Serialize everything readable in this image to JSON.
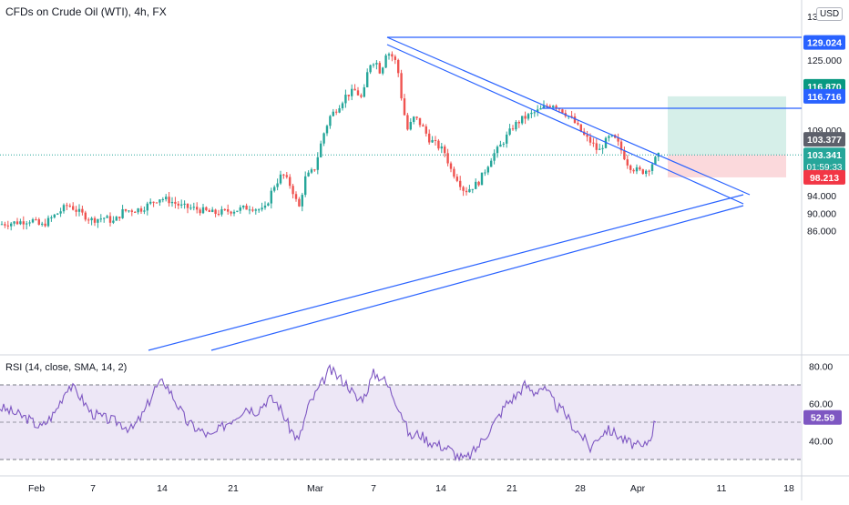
{
  "header": {
    "symbol_title": "CFDs on Crude Oil (WTI), 4h, FX",
    "currency": "USD"
  },
  "colors": {
    "up": "#26a69a",
    "down": "#ef5350",
    "trendline": "#2962ff",
    "rsi_line": "#7e57c2",
    "rsi_band": "#ede7f6",
    "profit_zone": "#d6efe9",
    "loss_zone": "#fbd9dc",
    "current_price": "#26a69a",
    "stop_price": "#f23645",
    "target_price": "#2962ff",
    "ref_price": "#5d606b",
    "target_green": "#089981"
  },
  "chart_data": [
    {
      "type": "candlestick",
      "title": "CFDs on Crude Oil (WTI), 4h, FX",
      "ylim": [
        82,
        135
      ],
      "y_ticks": [
        "135.000",
        "125.000",
        "109.000",
        "94.000",
        "90.000",
        "86.000"
      ],
      "x_ticks": [
        "Feb",
        "7",
        "14",
        "21",
        "Mar",
        "7",
        "14",
        "21",
        "28",
        "Apr",
        "11",
        "18"
      ],
      "anchors": [
        [
          0,
          87.5
        ],
        [
          20,
          88.0
        ],
        [
          35,
          88.5
        ],
        [
          45,
          87.0
        ],
        [
          60,
          89.5
        ],
        [
          75,
          92.0
        ],
        [
          85,
          90.5
        ],
        [
          100,
          88.5
        ],
        [
          115,
          89.0
        ],
        [
          125,
          88.0
        ],
        [
          135,
          90.5
        ],
        [
          155,
          91.0
        ],
        [
          175,
          93.5
        ],
        [
          185,
          93.0
        ],
        [
          200,
          91.5
        ],
        [
          215,
          91.0
        ],
        [
          235,
          90.0
        ],
        [
          250,
          90.5
        ],
        [
          265,
          91.0
        ],
        [
          275,
          91.5
        ],
        [
          290,
          90.5
        ],
        [
          300,
          96.0
        ],
        [
          310,
          99.0
        ],
        [
          320,
          96.0
        ],
        [
          328,
          91.0
        ],
        [
          335,
          98.0
        ],
        [
          345,
          100.0
        ],
        [
          355,
          108.0
        ],
        [
          362,
          112.0
        ],
        [
          370,
          114.0
        ],
        [
          380,
          117.0
        ],
        [
          390,
          118.0
        ],
        [
          398,
          116.0
        ],
        [
          405,
          124.0
        ],
        [
          412,
          125.0
        ],
        [
          418,
          122.0
        ],
        [
          424,
          127.0
        ],
        [
          430,
          126.0
        ],
        [
          436,
          124.0
        ],
        [
          441,
          116.0
        ],
        [
          447,
          109.0
        ],
        [
          455,
          112.0
        ],
        [
          463,
          110.0
        ],
        [
          471,
          107.0
        ],
        [
          480,
          105.5
        ],
        [
          488,
          104.0
        ],
        [
          495,
          100.0
        ],
        [
          502,
          98.0
        ],
        [
          510,
          95.0
        ],
        [
          518,
          96.0
        ],
        [
          525,
          97.0
        ],
        [
          533,
          100.0
        ],
        [
          540,
          103.0
        ],
        [
          548,
          105.0
        ],
        [
          556,
          107.5
        ],
        [
          564,
          110.0
        ],
        [
          573,
          111.5
        ],
        [
          582,
          112.5
        ],
        [
          592,
          113.5
        ],
        [
          600,
          114.5
        ],
        [
          607,
          115.0
        ],
        [
          614,
          114.0
        ],
        [
          620,
          113.0
        ],
        [
          628,
          111.5
        ],
        [
          635,
          109.5
        ],
        [
          642,
          107.5
        ],
        [
          650,
          106.0
        ],
        [
          657,
          104.0
        ],
        [
          663,
          106.0
        ],
        [
          670,
          107.5
        ],
        [
          677,
          106.5
        ],
        [
          683,
          104.0
        ],
        [
          690,
          101.0
        ],
        [
          697,
          100.0
        ],
        [
          704,
          99.5
        ],
        [
          711,
          100.0
        ],
        [
          718,
          102.0
        ],
        [
          724,
          103.3
        ]
      ],
      "annotations": {
        "current_price": "103.341",
        "countdown": "01:59:33",
        "stop_price": "98.213",
        "target_price_line": "116.716",
        "target_price_tag": "116.870",
        "top_line_price": "129.024",
        "ref_price": "103.377"
      },
      "position_tool": {
        "entry": 103.34,
        "target": 116.716,
        "stop": 98.213
      }
    },
    {
      "type": "line",
      "title": "RSI (14, close, SMA, 14, 2)",
      "ylim": [
        25,
        85
      ],
      "y_ticks": [
        "80.00",
        "60.00",
        "40.00"
      ],
      "band": [
        30,
        70
      ],
      "mid": 50,
      "last_value": "52.59",
      "anchors": [
        [
          0,
          58
        ],
        [
          15,
          55
        ],
        [
          30,
          52
        ],
        [
          45,
          47
        ],
        [
          60,
          55
        ],
        [
          75,
          70
        ],
        [
          85,
          66
        ],
        [
          100,
          55
        ],
        [
          115,
          52
        ],
        [
          130,
          50
        ],
        [
          145,
          46
        ],
        [
          158,
          55
        ],
        [
          170,
          68
        ],
        [
          180,
          72
        ],
        [
          192,
          62
        ],
        [
          205,
          50
        ],
        [
          218,
          46
        ],
        [
          232,
          42
        ],
        [
          245,
          48
        ],
        [
          258,
          53
        ],
        [
          270,
          58
        ],
        [
          282,
          56
        ],
        [
          295,
          63
        ],
        [
          305,
          60
        ],
        [
          318,
          47
        ],
        [
          328,
          40
        ],
        [
          338,
          58
        ],
        [
          350,
          68
        ],
        [
          362,
          78
        ],
        [
          372,
          74
        ],
        [
          382,
          70
        ],
        [
          392,
          62
        ],
        [
          400,
          64
        ],
        [
          410,
          76
        ],
        [
          420,
          74
        ],
        [
          430,
          66
        ],
        [
          440,
          56
        ],
        [
          450,
          42
        ],
        [
          460,
          44
        ],
        [
          470,
          40
        ],
        [
          480,
          38
        ],
        [
          492,
          36
        ],
        [
          502,
          32
        ],
        [
          510,
          30
        ],
        [
          518,
          33
        ],
        [
          526,
          38
        ],
        [
          536,
          45
        ],
        [
          546,
          52
        ],
        [
          556,
          60
        ],
        [
          566,
          64
        ],
        [
          576,
          70
        ],
        [
          586,
          66
        ],
        [
          594,
          69
        ],
        [
          602,
          65
        ],
        [
          612,
          58
        ],
        [
          620,
          55
        ],
        [
          630,
          47
        ],
        [
          640,
          42
        ],
        [
          648,
          36
        ],
        [
          656,
          42
        ],
        [
          666,
          46
        ],
        [
          676,
          44
        ],
        [
          686,
          40
        ],
        [
          696,
          38
        ],
        [
          706,
          36
        ],
        [
          714,
          42
        ],
        [
          720,
          52
        ]
      ]
    }
  ]
}
